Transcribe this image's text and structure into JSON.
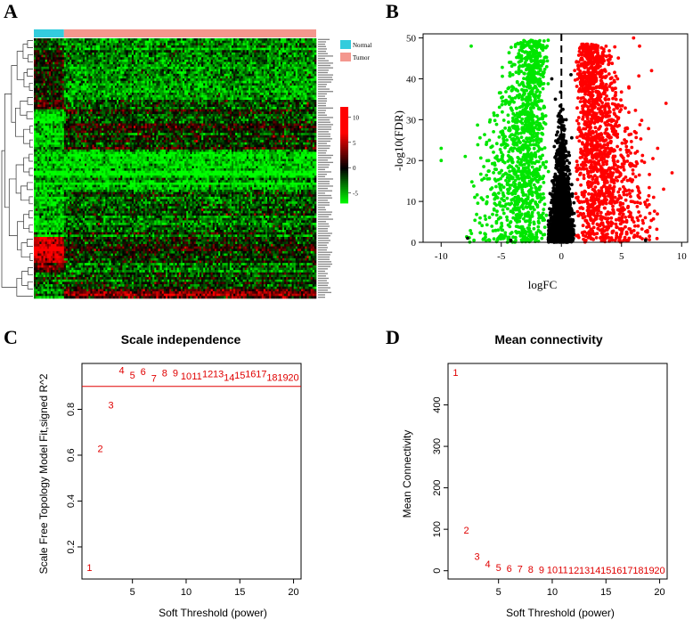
{
  "panels": {
    "A": {
      "letter": "A"
    },
    "B": {
      "letter": "B"
    },
    "C": {
      "letter": "C"
    },
    "D": {
      "letter": "D"
    }
  },
  "chart_data": [
    {
      "id": "A",
      "type": "heatmap",
      "title": "",
      "legend": {
        "entries": [
          {
            "label": "Normal",
            "color": "#33ccdd"
          },
          {
            "label": "Tumor",
            "color": "#f4978e"
          }
        ],
        "placement": "top-right"
      },
      "colorbar": {
        "ticks": [
          10,
          5,
          0,
          -5
        ],
        "low_color": "#00ff00",
        "mid_color": "#000000",
        "high_color": "#ff0000",
        "range": [
          -7,
          12
        ]
      },
      "group_fraction_normal": 0.105,
      "n_rows": 110,
      "n_cols": 150
    },
    {
      "id": "B",
      "type": "scatter",
      "title": "",
      "xlabel": "logFC",
      "ylabel": "-log10(FDR)",
      "xlim": [
        -11.5,
        10.5
      ],
      "ylim": [
        0,
        51
      ],
      "xticks": [
        -10,
        -5,
        0,
        5,
        10
      ],
      "yticks": [
        0,
        10,
        20,
        30,
        40,
        50
      ],
      "cutoff_x": 0,
      "series": [
        {
          "color": "#00e600",
          "sample_points": [
            [
              -10,
              23
            ],
            [
              -10,
              20
            ],
            [
              -8,
              21
            ],
            [
              -7.5,
              48
            ],
            [
              -7.2,
              11
            ],
            [
              -5.1,
              17
            ],
            [
              -5,
              22
            ],
            [
              -3,
              48
            ],
            [
              -4,
              8
            ],
            [
              -2.5,
              42
            ]
          ]
        },
        {
          "color": "#ff0000",
          "sample_points": [
            [
              9.2,
              17
            ],
            [
              8.7,
              34
            ],
            [
              8,
              23
            ],
            [
              8.5,
              13
            ],
            [
              7.5,
              42
            ],
            [
              6,
              50
            ],
            [
              6.5,
              48
            ],
            [
              4.5,
              36
            ],
            [
              3,
              47
            ],
            [
              2.5,
              44
            ]
          ]
        },
        {
          "color": "#000000",
          "sample_points": [
            [
              -0.8,
              40
            ],
            [
              -0.5,
              35
            ],
            [
              0.4,
              30
            ],
            [
              0.8,
              41
            ],
            [
              -7.8,
              1
            ],
            [
              -4.2,
              0.5
            ],
            [
              7,
              0.5
            ],
            [
              0.2,
              10
            ],
            [
              -0.3,
              5
            ],
            [
              0.6,
              22
            ]
          ]
        }
      ]
    },
    {
      "id": "C",
      "type": "scatter",
      "title": "Scale independence",
      "xlabel": "Soft Threshold (power)",
      "ylabel": "Scale Free Topology Model Fit,signed R^2",
      "xlim": [
        0.3,
        20.7
      ],
      "ylim": [
        0.06,
        1.0
      ],
      "xticks": [
        5,
        10,
        15,
        20
      ],
      "yticks": [
        0.2,
        0.4,
        0.6,
        0.8
      ],
      "hline": 0.9,
      "x": [
        1,
        2,
        3,
        4,
        5,
        6,
        7,
        8,
        9,
        10,
        11,
        12,
        13,
        14,
        15,
        16,
        17,
        18,
        19,
        20
      ],
      "values": [
        0.11,
        0.63,
        0.82,
        0.97,
        0.95,
        0.965,
        0.935,
        0.96,
        0.96,
        0.945,
        0.945,
        0.955,
        0.955,
        0.94,
        0.95,
        0.955,
        0.955,
        0.94,
        0.94,
        0.94
      ]
    },
    {
      "id": "D",
      "type": "scatter",
      "title": "Mean connectivity",
      "xlabel": "Soft Threshold (power)",
      "ylabel": "Mean Connectivity",
      "xlim": [
        0.3,
        20.7
      ],
      "ylim": [
        -20,
        500
      ],
      "xticks": [
        5,
        10,
        15,
        20
      ],
      "yticks": [
        0,
        100,
        200,
        300,
        400
      ],
      "x": [
        1,
        2,
        3,
        4,
        5,
        6,
        7,
        8,
        9,
        10,
        11,
        12,
        13,
        14,
        15,
        16,
        17,
        18,
        19,
        20
      ],
      "values": [
        478,
        98,
        35,
        16,
        8,
        6,
        5,
        4,
        3,
        3,
        3,
        2,
        2,
        2,
        2,
        2,
        2,
        2,
        2,
        2
      ]
    }
  ]
}
